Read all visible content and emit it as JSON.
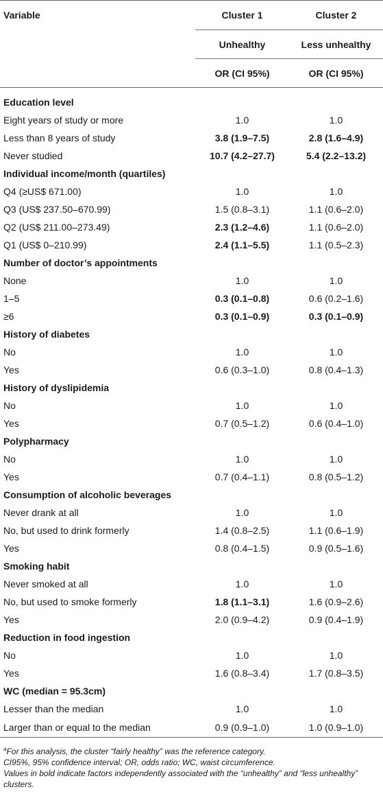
{
  "header": {
    "variable": "Variable",
    "cluster1": "Cluster 1",
    "cluster2": "Cluster 2",
    "cluster1_sub": "Unhealthy",
    "cluster2_sub": "Less unhealthy",
    "metric1": "OR (CI 95%)",
    "metric2": "OR (CI 95%)"
  },
  "groups": [
    {
      "title": "Education level",
      "rows": [
        {
          "label": "Eight years of study or more",
          "c1": "1.0",
          "c1_bold": false,
          "c2": "1.0",
          "c2_bold": false
        },
        {
          "label": "Less than 8 years of study",
          "c1": "3.8 (1.9–7.5)",
          "c1_bold": true,
          "c2": "2.8 (1.6–4.9)",
          "c2_bold": true
        },
        {
          "label": "Never studied",
          "c1": "10.7 (4.2–27.7)",
          "c1_bold": true,
          "c2": "5.4 (2.2–13.2)",
          "c2_bold": true
        }
      ]
    },
    {
      "title": "Individual income/month (quartiles)",
      "rows": [
        {
          "label": "Q4 (≥US$ 671.00)",
          "c1": "1.0",
          "c1_bold": false,
          "c2": "1.0",
          "c2_bold": false
        },
        {
          "label": "Q3 (US$ 237.50–670.99)",
          "c1": "1.5 (0.8–3.1)",
          "c1_bold": false,
          "c2": "1.1 (0.6–2.0)",
          "c2_bold": false
        },
        {
          "label": "Q2 (US$ 211.00–273.49)",
          "c1": "2.3 (1.2–4.6)",
          "c1_bold": true,
          "c2": "1.1 (0.6–2.0)",
          "c2_bold": false
        },
        {
          "label": "Q1 (US$ 0–210.99)",
          "c1": "2.4 (1.1–5.5)",
          "c1_bold": true,
          "c2": "1.1 (0.5–2.3)",
          "c2_bold": false
        }
      ]
    },
    {
      "title": "Number of doctor’s appointments",
      "rows": [
        {
          "label": "None",
          "c1": "1.0",
          "c1_bold": false,
          "c2": "1.0",
          "c2_bold": false
        },
        {
          "label": "1–5",
          "c1": "0.3 (0.1–0.8)",
          "c1_bold": true,
          "c2": "0.6 (0.2–1.6)",
          "c2_bold": false
        },
        {
          "label": "≥6",
          "c1": "0.3 (0.1–0.9)",
          "c1_bold": true,
          "c2": "0.3 (0.1–0.9)",
          "c2_bold": true
        }
      ]
    },
    {
      "title": "History of diabetes",
      "rows": [
        {
          "label": "No",
          "c1": "1.0",
          "c1_bold": false,
          "c2": "1.0",
          "c2_bold": false
        },
        {
          "label": "Yes",
          "c1": "0.6 (0.3–1.0)",
          "c1_bold": false,
          "c2": "0.8 (0.4–1.3)",
          "c2_bold": false
        }
      ]
    },
    {
      "title": "History of dyslipidemia",
      "rows": [
        {
          "label": "No",
          "c1": "1.0",
          "c1_bold": false,
          "c2": "1.0",
          "c2_bold": false
        },
        {
          "label": "Yes",
          "c1": "0.7 (0.5–1.2)",
          "c1_bold": false,
          "c2": "0.6 (0.4–1.0)",
          "c2_bold": false
        }
      ]
    },
    {
      "title": "Polypharmacy",
      "rows": [
        {
          "label": "No",
          "c1": "1.0",
          "c1_bold": false,
          "c2": "1.0",
          "c2_bold": false
        },
        {
          "label": "Yes",
          "c1": "0.7 (0.4–1.1)",
          "c1_bold": false,
          "c2": "0.8 (0.5–1.2)",
          "c2_bold": false
        }
      ]
    },
    {
      "title": "Consumption of alcoholic beverages",
      "rows": [
        {
          "label": "Never drank at all",
          "c1": "1.0",
          "c1_bold": false,
          "c2": "1.0",
          "c2_bold": false
        },
        {
          "label": "No, but used to drink formerly",
          "c1": "1.4 (0.8–2.5)",
          "c1_bold": false,
          "c2": "1.1 (0.6–1.9)",
          "c2_bold": false
        },
        {
          "label": "Yes",
          "c1": "0.8 (0.4–1.5)",
          "c1_bold": false,
          "c2": "0.9 (0.5–1.6)",
          "c2_bold": false
        }
      ]
    },
    {
      "title": "Smoking habit",
      "rows": [
        {
          "label": "Never smoked at all",
          "c1": "1.0",
          "c1_bold": false,
          "c2": "1.0",
          "c2_bold": false
        },
        {
          "label": "No, but used to smoke formerly",
          "c1": "1.8 (1.1–3.1)",
          "c1_bold": true,
          "c2": "1.6 (0.9–2.6)",
          "c2_bold": false
        },
        {
          "label": "Yes",
          "c1": "2.0 (0.9–4.2)",
          "c1_bold": false,
          "c2": "0.9 (0.4–1.9)",
          "c2_bold": false
        }
      ]
    },
    {
      "title": "Reduction in food ingestion",
      "rows": [
        {
          "label": "No",
          "c1": "1.0",
          "c1_bold": false,
          "c2": "1.0",
          "c2_bold": false
        },
        {
          "label": "Yes",
          "c1": "1.6 (0.8–3.4)",
          "c1_bold": false,
          "c2": "1.7 (0.8–3.5)",
          "c2_bold": false
        }
      ]
    },
    {
      "title": "WC (median = 95.3cm)",
      "rows": [
        {
          "label": "Lesser than the median",
          "c1": "1.0",
          "c1_bold": false,
          "c2": "1.0",
          "c2_bold": false
        },
        {
          "label": "Larger than or equal to the median",
          "c1": "0.9 (0.9–1.0)",
          "c1_bold": false,
          "c2": "1.0 (0.9–1.0)",
          "c2_bold": false
        }
      ]
    }
  ],
  "footnotes": {
    "mark": "a",
    "note_a": "For this analysis, the cluster “fairly healthy” was the reference category.",
    "abbrev": "CI95%, 95% confidence interval; OR, odds ratio; WC, waist circumference.",
    "bold_note": "Values in bold indicate factors independently associated with the “unhealthy” and “less unhealthy” clusters."
  }
}
